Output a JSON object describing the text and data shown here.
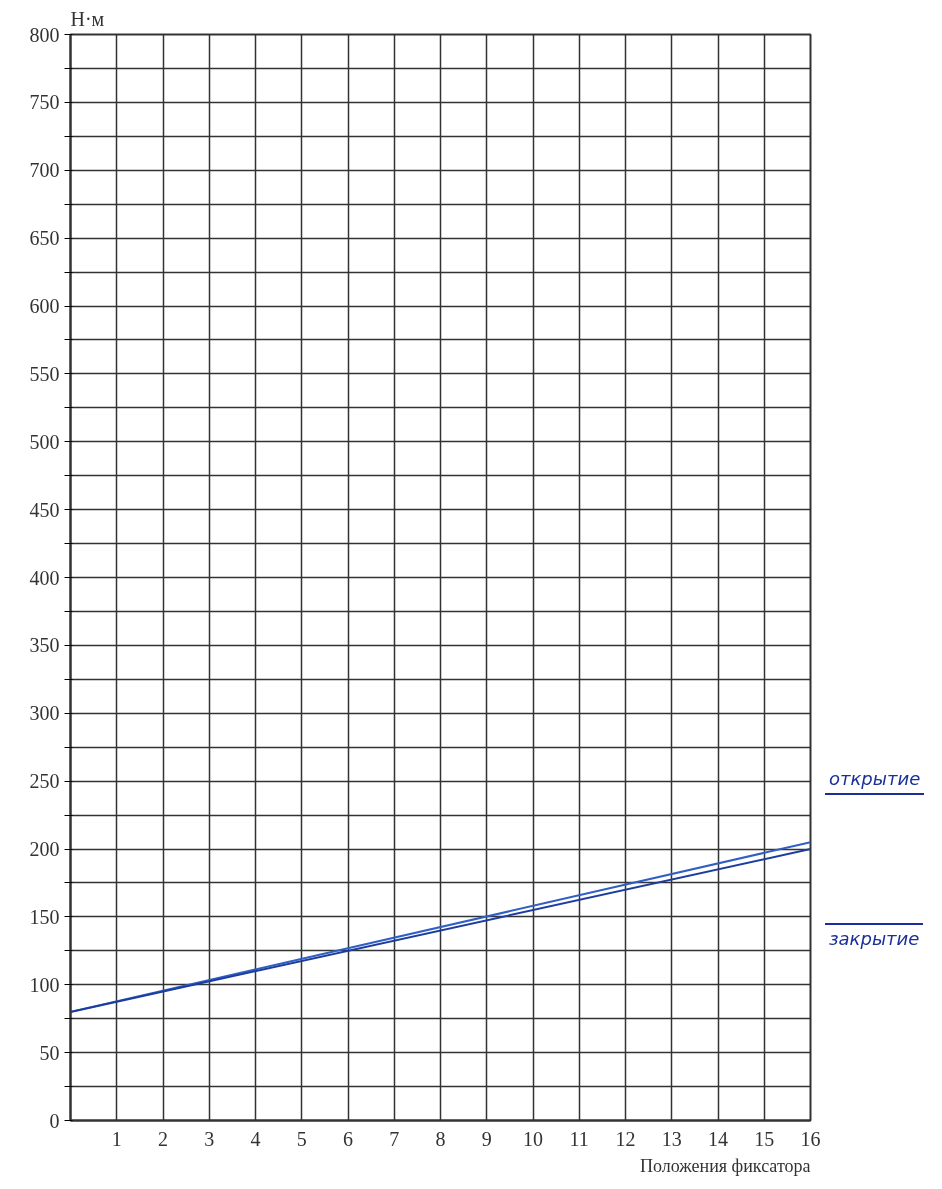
{
  "chart_data": {
    "type": "line",
    "xlabel": "Положения фиксатора",
    "ylabel": "Н·м",
    "series": [
      {
        "color": "#2f5fc4",
        "values": [
          80,
          205
        ]
      },
      {
        "color": "#1d3d9e",
        "values": [
          80,
          200
        ]
      }
    ],
    "x": [
      0,
      16
    ],
    "xlim": [
      0,
      16
    ],
    "ylim": [
      0,
      800
    ],
    "xticks": [
      1,
      2,
      3,
      4,
      5,
      6,
      7,
      8,
      9,
      10,
      11,
      12,
      13,
      14,
      15,
      16
    ],
    "yticks": [
      0,
      {
        "value": 25,
        "label": null
      },
      50,
      {
        "value": 75,
        "label": null
      },
      100,
      {
        "value": 125,
        "label": null
      },
      150,
      {
        "value": 175,
        "label": null
      },
      200,
      {
        "value": 225,
        "label": null
      },
      250,
      {
        "value": 275,
        "label": null
      },
      300,
      {
        "value": 325,
        "label": null
      },
      350,
      {
        "value": 375,
        "label": null
      },
      400,
      {
        "value": 425,
        "label": null
      },
      450,
      {
        "value": 475,
        "label": null
      },
      500,
      {
        "value": 525,
        "label": null
      },
      550,
      {
        "value": 575,
        "label": null
      },
      600,
      {
        "value": 625,
        "label": null
      },
      650,
      {
        "value": 675,
        "label": null
      },
      700,
      {
        "value": 725,
        "label": null
      },
      750,
      {
        "value": 775,
        "label": null
      },
      800
    ],
    "grid": true,
    "annotations": [
      "открытие",
      "закрытие"
    ]
  }
}
